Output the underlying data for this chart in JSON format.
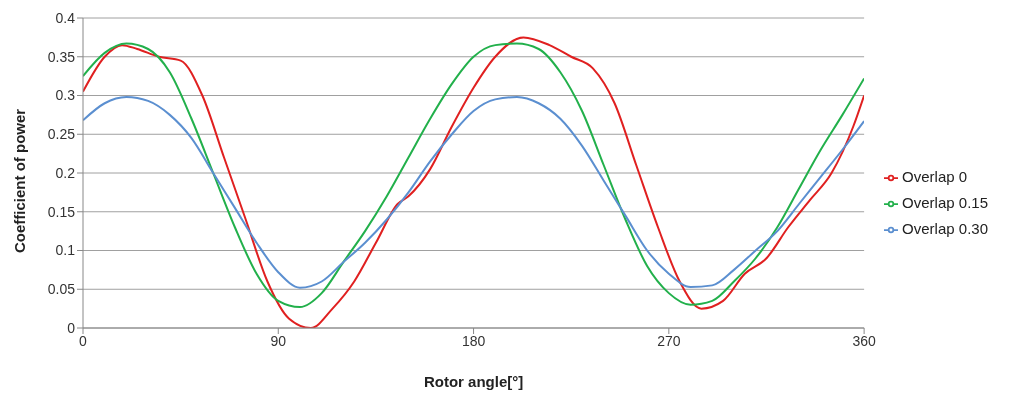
{
  "chart_data": {
    "type": "line",
    "xlabel": "Rotor angle[°]",
    "ylabel": "Coefficient of power",
    "xlim": [
      0,
      360
    ],
    "xticks": [
      0,
      90,
      180,
      270,
      360
    ],
    "ylim": [
      0,
      0.4
    ],
    "yticks": [
      0,
      0.05,
      0.1,
      0.15,
      0.2,
      0.25,
      0.3,
      0.35,
      0.4
    ],
    "grid": "y",
    "legend": "right",
    "marker": "none",
    "line_style": "solid",
    "series": [
      {
        "name": "Overlap 0",
        "color": "#e02020",
        "x": [
          0,
          10,
          18,
          25,
          35,
          45,
          55,
          65,
          75,
          85,
          95,
          105,
          115,
          125,
          135,
          145,
          150,
          160,
          170,
          180,
          190,
          203,
          215,
          225,
          235,
          245,
          255,
          265,
          275,
          285,
          295,
          305,
          315,
          325,
          335,
          345,
          355,
          360
        ],
        "values": [
          0.305,
          0.35,
          0.365,
          0.36,
          0.35,
          0.345,
          0.3,
          0.22,
          0.14,
          0.06,
          0.012,
          0,
          0.025,
          0.06,
          0.11,
          0.16,
          0.17,
          0.205,
          0.26,
          0.31,
          0.35,
          0.375,
          0.365,
          0.35,
          0.335,
          0.29,
          0.21,
          0.13,
          0.06,
          0.025,
          0.035,
          0.07,
          0.09,
          0.13,
          0.165,
          0.2,
          0.26,
          0.3
        ]
      },
      {
        "name": "Overlap 0.15",
        "color": "#22b04b",
        "x": [
          0,
          10,
          20,
          30,
          40,
          50,
          60,
          70,
          80,
          90,
          100,
          110,
          120,
          130,
          140,
          150,
          160,
          170,
          180,
          190,
          200,
          210,
          220,
          230,
          240,
          250,
          260,
          270,
          280,
          290,
          300,
          310,
          320,
          330,
          340,
          350,
          360
        ],
        "values": [
          0.325,
          0.355,
          0.367,
          0.36,
          0.33,
          0.27,
          0.2,
          0.13,
          0.07,
          0.035,
          0.027,
          0.045,
          0.085,
          0.125,
          0.17,
          0.22,
          0.27,
          0.315,
          0.35,
          0.365,
          0.367,
          0.36,
          0.33,
          0.28,
          0.21,
          0.14,
          0.08,
          0.045,
          0.03,
          0.035,
          0.06,
          0.09,
          0.13,
          0.18,
          0.23,
          0.275,
          0.322
        ]
      },
      {
        "name": "Overlap 0.30",
        "color": "#5b8fd0",
        "x": [
          0,
          10,
          20,
          30,
          40,
          50,
          60,
          70,
          80,
          90,
          100,
          110,
          120,
          130,
          140,
          150,
          160,
          170,
          180,
          190,
          200,
          210,
          220,
          230,
          240,
          250,
          260,
          270,
          280,
          290,
          300,
          310,
          320,
          330,
          340,
          350,
          360
        ],
        "values": [
          0.268,
          0.29,
          0.298,
          0.293,
          0.275,
          0.245,
          0.2,
          0.155,
          0.11,
          0.072,
          0.052,
          0.06,
          0.085,
          0.11,
          0.14,
          0.175,
          0.215,
          0.25,
          0.28,
          0.295,
          0.298,
          0.29,
          0.27,
          0.235,
          0.19,
          0.145,
          0.1,
          0.07,
          0.053,
          0.055,
          0.075,
          0.1,
          0.125,
          0.16,
          0.195,
          0.23,
          0.267
        ]
      }
    ]
  }
}
